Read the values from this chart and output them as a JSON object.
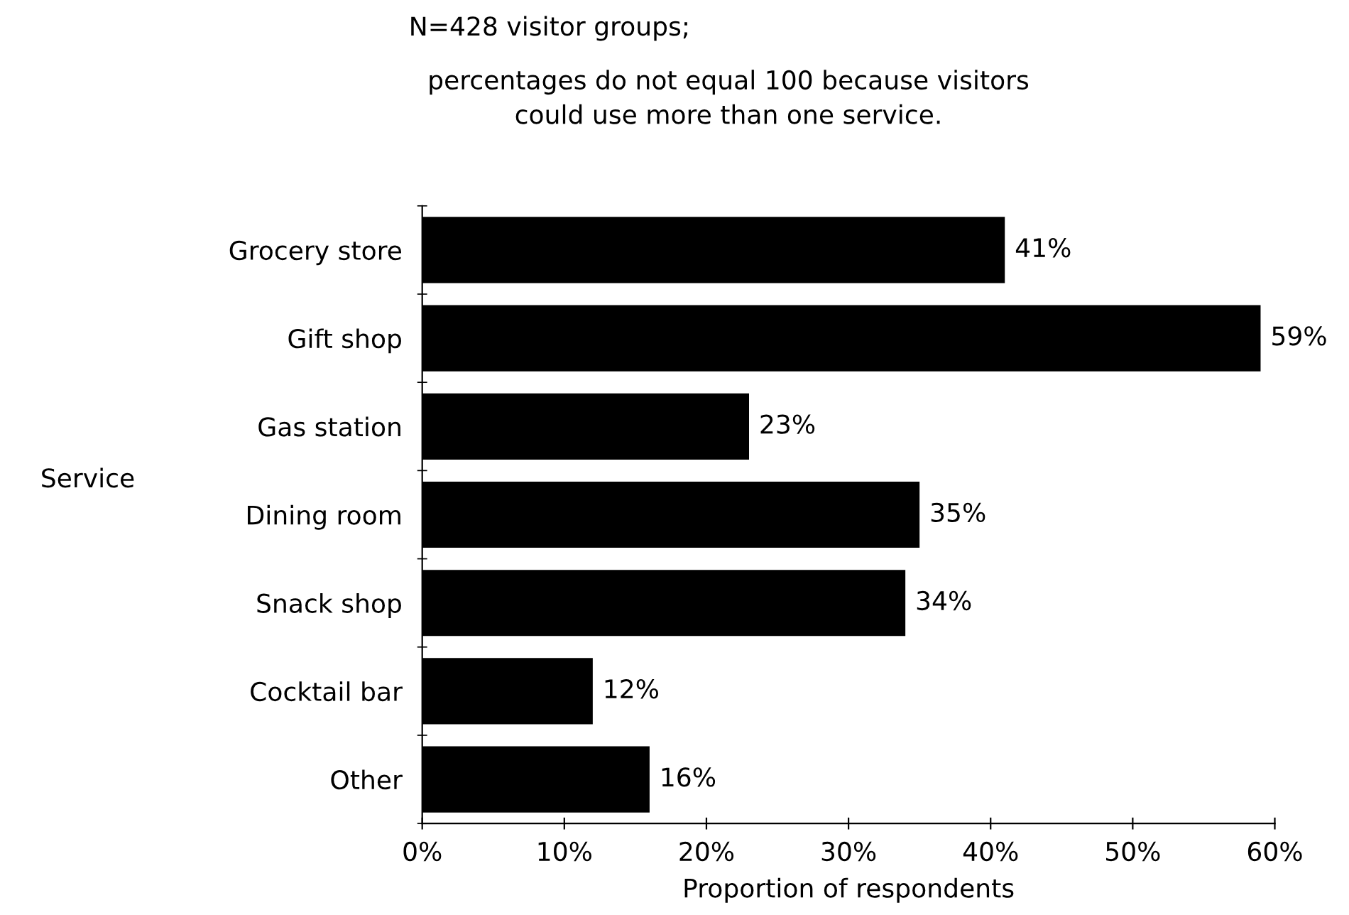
{
  "chart_data": {
    "type": "bar",
    "orientation": "horizontal",
    "xlabel": "Proportion of respondents",
    "ylabel": "Service",
    "annotations": [
      "N=428 visitor groups;",
      "percentages do not equal 100 because visitors\ncould use more than one service."
    ],
    "categories": [
      "Grocery store",
      "Gift shop",
      "Gas station",
      "Dining room",
      "Snack shop",
      "Cocktail bar",
      "Other"
    ],
    "values": [
      41,
      59,
      23,
      35,
      34,
      12,
      16
    ],
    "value_labels": [
      "41%",
      "59%",
      "23%",
      "35%",
      "34%",
      "12%",
      "16%"
    ],
    "color": "#000000",
    "xlim": [
      0,
      60
    ],
    "xticks": [
      {
        "value": 0,
        "label": "0%"
      },
      {
        "value": 10,
        "label": "10%"
      },
      {
        "value": 20,
        "label": "20%"
      },
      {
        "value": 30,
        "label": "30%"
      },
      {
        "value": 40,
        "label": "40%"
      },
      {
        "value": 50,
        "label": "50%"
      },
      {
        "value": 60,
        "label": "60%"
      }
    ],
    "grid": false,
    "legend": false
  }
}
